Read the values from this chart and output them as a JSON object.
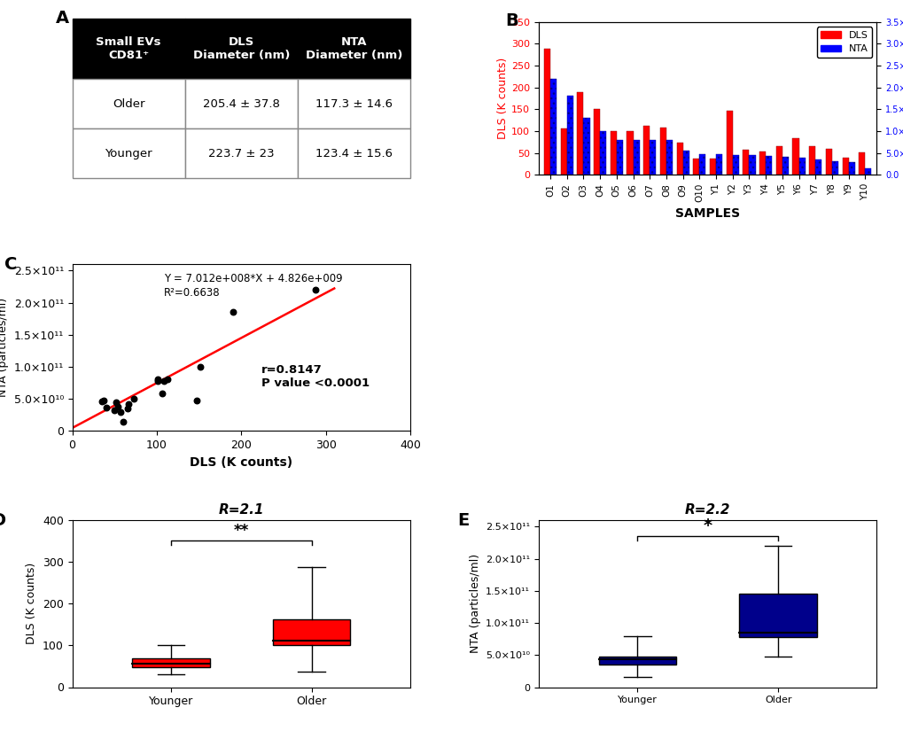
{
  "table_header": [
    "Small EVs\nCD81⁺",
    "DLS\nDiameter (nm)",
    "NTA\nDiameter (nm)"
  ],
  "table_rows": [
    [
      "Older",
      "205.4 ± 37.8",
      "117.3 ± 14.6"
    ],
    [
      "Younger",
      "223.7 ± 23",
      "123.4 ± 15.6"
    ]
  ],
  "bar_samples": [
    "O1",
    "O2",
    "O3",
    "O4",
    "O5",
    "O6",
    "O7",
    "O8",
    "O9",
    "O10",
    "Y1",
    "Y2",
    "Y3",
    "Y4",
    "Y5",
    "Y6",
    "Y7",
    "Y8",
    "Y9",
    "Y10"
  ],
  "dls_values": [
    288,
    106,
    190,
    151,
    101,
    101,
    113,
    108,
    73,
    37,
    37,
    147,
    57,
    54,
    66,
    84,
    65,
    60,
    40,
    52
  ],
  "nta_values": [
    220000000000.0,
    182000000000.0,
    130000000000.0,
    100000000000.0,
    80000000000.0,
    80000000000.0,
    80000000000.0,
    80000000000.0,
    55000000000.0,
    48000000000.0,
    48000000000.0,
    46000000000.0,
    45000000000.0,
    43000000000.0,
    42000000000.0,
    40000000000.0,
    36000000000.0,
    31000000000.0,
    30000000000.0,
    16000000000.0
  ],
  "scatter_x": [
    35,
    37,
    40,
    50,
    52,
    54,
    57,
    60,
    65,
    66,
    73,
    101,
    101,
    106,
    108,
    113,
    147,
    151,
    190,
    288
  ],
  "scatter_y": [
    46000000000.0,
    48000000000.0,
    37000000000.0,
    32000000000.0,
    45000000000.0,
    38000000000.0,
    30000000000.0,
    15000000000.0,
    35000000000.0,
    42000000000.0,
    50000000000.0,
    80000000000.0,
    78000000000.0,
    58000000000.0,
    78000000000.0,
    80000000000.0,
    48000000000.0,
    100000000000.0,
    185000000000.0,
    220000000000.0
  ],
  "slope": 701200000.0,
  "intercept": 4826000000.0,
  "dls_box_younger": {
    "q1": 48,
    "median": 57,
    "q3": 68,
    "whisker_low": 30,
    "whisker_high": 100
  },
  "dls_box_older": {
    "q1": 100,
    "median": 112,
    "q3": 163,
    "whisker_low": 37,
    "whisker_high": 288
  },
  "nta_box_younger": {
    "q1": 35000000000.0,
    "median": 44000000000.0,
    "q3": 47000000000.0,
    "whisker_low": 16000000000.0,
    "whisker_high": 80000000000.0
  },
  "nta_box_older": {
    "q1": 78000000000.0,
    "median": 85000000000.0,
    "q3": 145000000000.0,
    "whisker_low": 48000000000.0,
    "whisker_high": 220000000000.0
  },
  "panel_labels": [
    "A",
    "B",
    "C",
    "D",
    "E"
  ],
  "ratio_D": "R=2.1",
  "ratio_E": "R=2.2"
}
